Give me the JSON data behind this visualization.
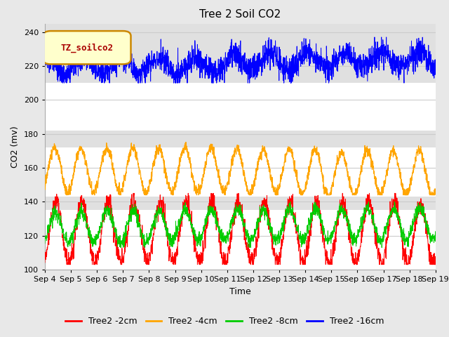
{
  "title": "Tree 2 Soil CO2",
  "ylabel": "CO2 (mv)",
  "xlabel": "Time",
  "legend_label": "TZ_soilco2",
  "series_labels": [
    "Tree2 -2cm",
    "Tree2 -4cm",
    "Tree2 -8cm",
    "Tree2 -16cm"
  ],
  "series_colors": [
    "#ff0000",
    "#ffa500",
    "#00cc00",
    "#0000ff"
  ],
  "ylim": [
    100,
    245
  ],
  "yticks": [
    100,
    120,
    140,
    160,
    180,
    200,
    220,
    240
  ],
  "xtick_labels": [
    "Sep 4",
    "Sep 5",
    "Sep 6",
    "Sep 7",
    "Sep 8",
    "Sep 9",
    "Sep 10",
    "Sep 11",
    "Sep 12",
    "Sep 13",
    "Sep 14",
    "Sep 15",
    "Sep 16",
    "Sep 17",
    "Sep 18",
    "Sep 19"
  ],
  "background_color": "#e8e8e8",
  "plot_bg_color": "#ffffff",
  "band_color": "#e0e0e0",
  "grid_color": "#cccccc",
  "title_fontsize": 11,
  "axis_fontsize": 9,
  "tick_fontsize": 8,
  "legend_box_facecolor": "#ffffcc",
  "legend_box_edgecolor": "#cc8800",
  "legend_text_color": "#aa0000",
  "n_points": 2160,
  "seed": 42
}
